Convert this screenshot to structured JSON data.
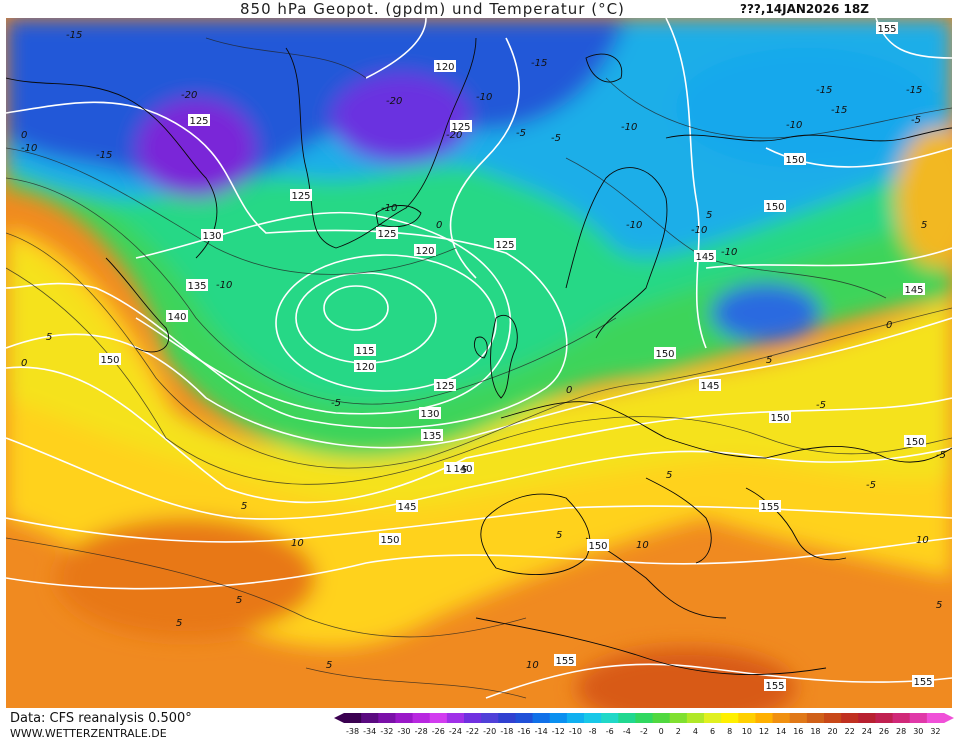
{
  "header": {
    "title": "850 hPa Geopot. (gpdm) und Temperatur (°C)",
    "date_time": "???,14JAN2026 18Z"
  },
  "footer": {
    "data_source": "Data: CFS reanalysis 0.500°",
    "website": "WWW.WETTERZENTRALE.DE"
  },
  "legend": {
    "tick_labels": [
      "-38",
      "-34",
      "-32",
      "-30",
      "-28",
      "-26",
      "-24",
      "-22",
      "-20",
      "-18",
      "-16",
      "-14",
      "-12",
      "-10",
      "-8",
      "-6",
      "-4",
      "-2",
      "0",
      "2",
      "4",
      "6",
      "8",
      "10",
      "12",
      "14",
      "16",
      "18",
      "20",
      "22",
      "24",
      "26",
      "28",
      "30",
      "32"
    ],
    "colors": [
      "#3a0050",
      "#5a0a80",
      "#7a10a8",
      "#9a18c8",
      "#b828e0",
      "#d23cf0",
      "#a030e8",
      "#7030e0",
      "#5040d8",
      "#3040d0",
      "#2050d8",
      "#1070e8",
      "#0a90f0",
      "#10b0f0",
      "#18c8e8",
      "#20d8c8",
      "#20d890",
      "#30d860",
      "#50d840",
      "#80e030",
      "#b0e828",
      "#e0f020",
      "#fff000",
      "#ffd000",
      "#ffb000",
      "#f09010",
      "#e07818",
      "#d06018",
      "#c84818",
      "#c03020",
      "#b82030",
      "#c02050",
      "#d02878",
      "#e038a8",
      "#f050d8"
    ]
  },
  "map": {
    "geopotential_labels": [
      "125",
      "120",
      "125",
      "125",
      "125",
      "130",
      "120",
      "125",
      "145",
      "135",
      "140",
      "115",
      "120",
      "125",
      "130",
      "135",
      "140",
      "145",
      "140",
      "145",
      "150",
      "150",
      "150",
      "145",
      "155",
      "150",
      "150",
      "155",
      "150",
      "155",
      "155",
      "155",
      "150",
      "150"
    ],
    "temperature_labels": [
      "-15",
      "-20",
      "-10",
      "-15",
      "-20",
      "-20",
      "-15",
      "-10",
      "-15",
      "-15",
      "-5",
      "-10",
      "-10",
      "-10",
      "-5",
      "-10",
      "-10",
      "-5",
      "-10",
      "-15",
      "-10",
      "-5",
      "0",
      "-5",
      "-5",
      "0",
      "5",
      "-5",
      "0",
      "5",
      "5",
      "5",
      "5",
      "10",
      "10",
      "5",
      "5",
      "10",
      "10",
      "5",
      "5",
      "5",
      "5",
      "5",
      "0",
      "0"
    ]
  }
}
